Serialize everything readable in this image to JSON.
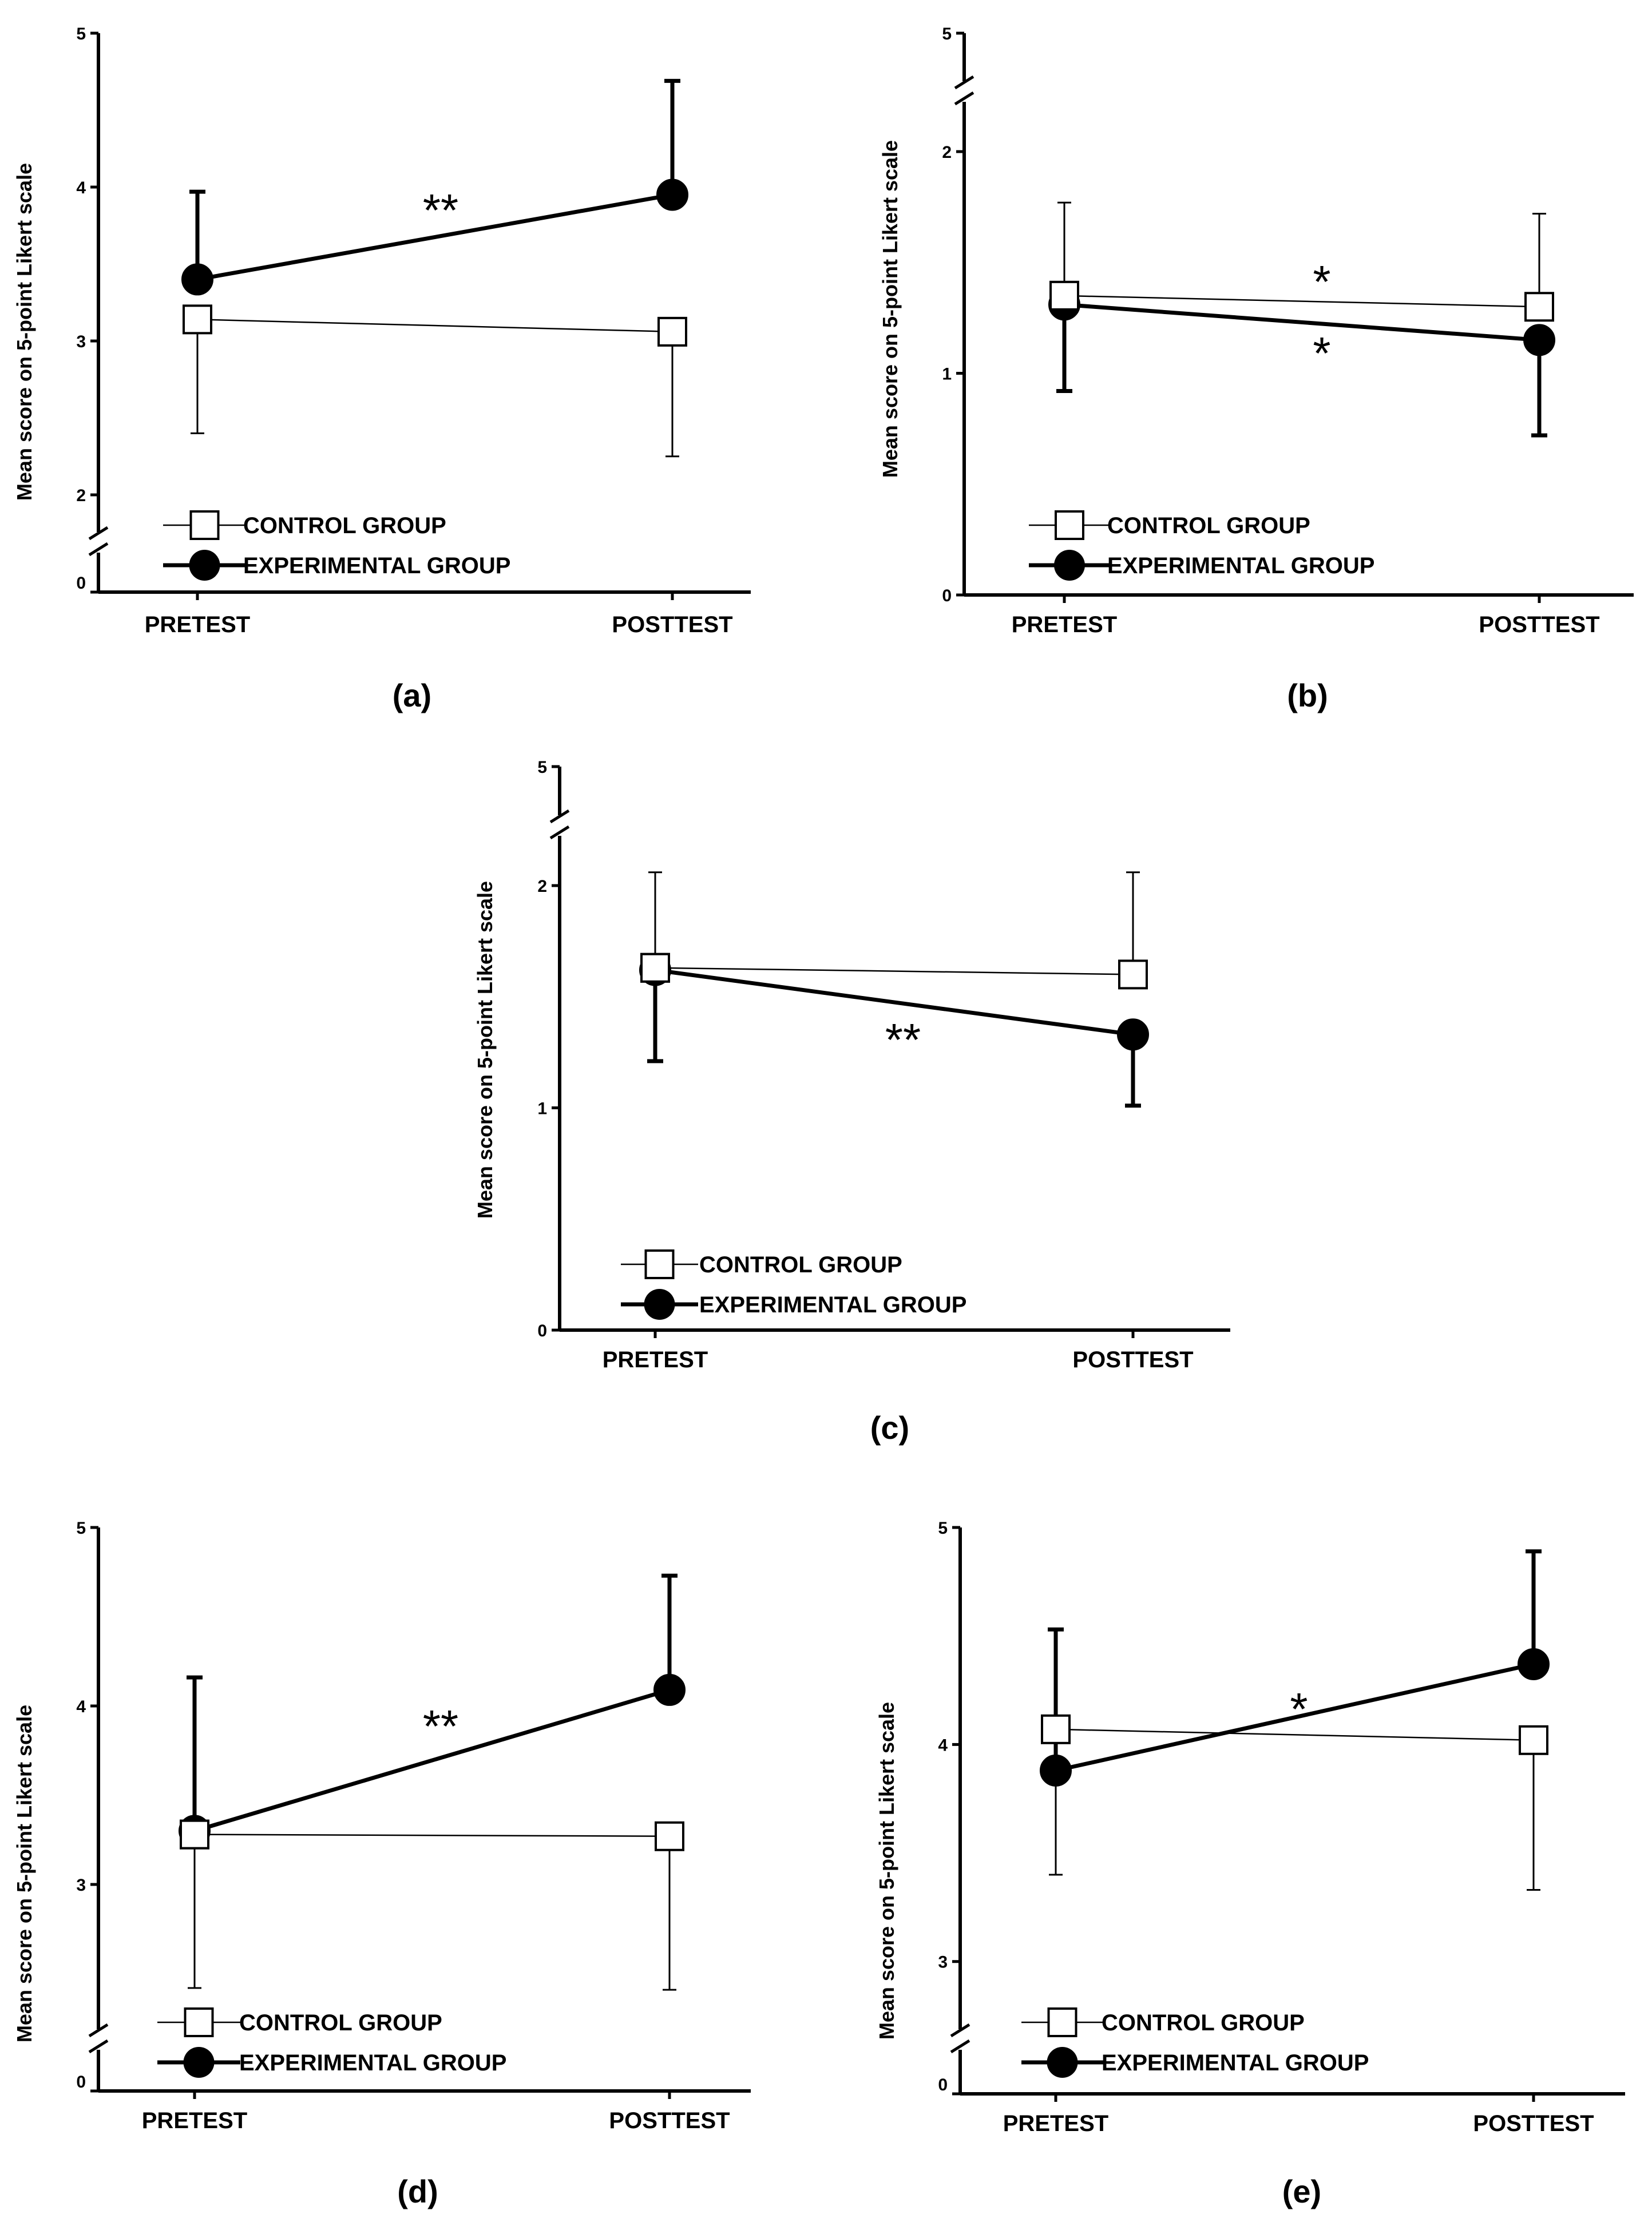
{
  "legend": {
    "control": "CONTROL GROUP",
    "experimental": "EXPERIMENTAL GROUP"
  },
  "colors": {
    "ink": "#000000",
    "control_fill": "#ffffff",
    "experimental_fill": "#000000",
    "background": "#ffffff"
  },
  "chart_data": [
    {
      "panel": "(a)",
      "type": "line",
      "ylabel": "Mean score on 5-point Likert scale",
      "categories": [
        "PRETEST",
        "POSTTEST"
      ],
      "y_break_between": [
        0,
        2
      ],
      "ylim": [
        2,
        5
      ],
      "yticks": [
        2,
        3,
        4,
        5
      ],
      "ytick_labels": [
        "2",
        "3",
        "4",
        "5"
      ],
      "zero_label": "0",
      "series": [
        {
          "name": "CONTROL GROUP",
          "values": [
            3.14,
            3.06
          ],
          "err_lower": [
            2.4,
            2.25
          ],
          "err_upper": [
            null,
            null
          ]
        },
        {
          "name": "EXPERIMENTAL GROUP",
          "values": [
            3.4,
            3.95
          ],
          "err_lower": [
            null,
            null
          ],
          "err_upper": [
            3.97,
            4.69
          ]
        }
      ],
      "annotations": [
        {
          "text": "**",
          "series": "EXPERIMENTAL GROUP"
        }
      ]
    },
    {
      "panel": "(b)",
      "type": "line",
      "ylabel": "Mean score on 5-point Likert scale",
      "categories": [
        "PRETEST",
        "POSTTEST"
      ],
      "y_break_between": [
        2,
        5
      ],
      "ylim": [
        0,
        2
      ],
      "yticks": [
        0,
        1,
        2
      ],
      "ytick_labels": [
        "0",
        "1",
        "2"
      ],
      "top_label": "5",
      "series": [
        {
          "name": "CONTROL GROUP",
          "values": [
            1.35,
            1.3
          ],
          "err_lower": [
            null,
            null
          ],
          "err_upper": [
            1.77,
            1.72
          ]
        },
        {
          "name": "EXPERIMENTAL GROUP",
          "values": [
            1.31,
            1.15
          ],
          "err_lower": [
            0.92,
            0.72
          ],
          "err_upper": [
            null,
            null
          ]
        }
      ],
      "annotations": [
        {
          "text": "*",
          "series": "CONTROL GROUP"
        },
        {
          "text": "*",
          "series": "EXPERIMENTAL GROUP"
        }
      ]
    },
    {
      "panel": "(c)",
      "type": "line",
      "ylabel": "Mean score on 5-point Likert scale",
      "categories": [
        "PRETEST",
        "POSTTEST"
      ],
      "y_break_between": [
        2,
        5
      ],
      "ylim": [
        0,
        2
      ],
      "yticks": [
        0,
        1,
        2
      ],
      "ytick_labels": [
        "0",
        "1",
        "2"
      ],
      "top_label": "5",
      "series": [
        {
          "name": "CONTROL GROUP",
          "values": [
            1.63,
            1.6
          ],
          "err_lower": [
            null,
            null
          ],
          "err_upper": [
            2.06,
            2.06
          ]
        },
        {
          "name": "EXPERIMENTAL GROUP",
          "values": [
            1.62,
            1.33
          ],
          "err_lower": [
            1.21,
            1.01
          ],
          "err_upper": [
            null,
            null
          ]
        }
      ],
      "annotations": [
        {
          "text": "**",
          "series": "EXPERIMENTAL GROUP"
        }
      ]
    },
    {
      "panel": "(d)",
      "type": "line",
      "ylabel": "Mean score on 5-point Likert scale",
      "categories": [
        "PRETEST",
        "POSTTEST"
      ],
      "y_break_between": [
        0,
        2
      ],
      "ylim": [
        2,
        5
      ],
      "yticks": [
        3,
        4,
        5
      ],
      "ytick_labels": [
        "3",
        "4",
        "5"
      ],
      "zero_label": "0",
      "series": [
        {
          "name": "CONTROL GROUP",
          "values": [
            3.28,
            3.27
          ],
          "err_lower": [
            2.42,
            2.41
          ],
          "err_upper": [
            null,
            null
          ]
        },
        {
          "name": "EXPERIMENTAL GROUP",
          "values": [
            3.3,
            4.09
          ],
          "err_lower": [
            null,
            null
          ],
          "err_upper": [
            4.16,
            4.73
          ]
        }
      ],
      "annotations": [
        {
          "text": "**",
          "series": "EXPERIMENTAL GROUP"
        }
      ]
    },
    {
      "panel": "(e)",
      "type": "line",
      "ylabel": "Mean score on 5-point Likert scale",
      "categories": [
        "PRETEST",
        "POSTTEST"
      ],
      "y_break_between": [
        0,
        2.8
      ],
      "ylim": [
        2.8,
        5
      ],
      "yticks": [
        3,
        4,
        5
      ],
      "ytick_labels": [
        "3",
        "4",
        "5"
      ],
      "zero_label": "0",
      "series": [
        {
          "name": "CONTROL GROUP",
          "values": [
            4.07,
            4.02
          ],
          "err_lower": [
            3.4,
            3.33
          ],
          "err_upper": [
            null,
            null
          ]
        },
        {
          "name": "EXPERIMENTAL GROUP",
          "values": [
            3.88,
            4.37
          ],
          "err_lower": [
            null,
            null
          ],
          "err_upper": [
            4.53,
            4.89
          ]
        }
      ],
      "annotations": [
        {
          "text": "*",
          "series": "EXPERIMENTAL GROUP"
        }
      ]
    }
  ]
}
